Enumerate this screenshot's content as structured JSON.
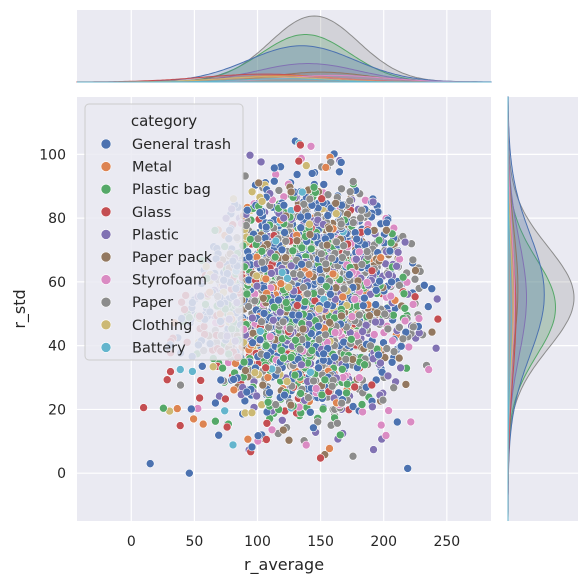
{
  "chart_data": {
    "type": "scatter",
    "title": "",
    "xlabel": "r_average",
    "ylabel": "r_std",
    "xlim": [
      -43,
      285
    ],
    "ylim": [
      -15,
      118
    ],
    "x_ticks": [
      "0",
      "50",
      "100",
      "150",
      "200",
      "250"
    ],
    "y_ticks": [
      "0",
      "20",
      "40",
      "60",
      "80",
      "100"
    ],
    "x_tick_values": [
      0,
      50,
      100,
      150,
      200,
      250
    ],
    "y_tick_values": [
      0,
      20,
      40,
      60,
      80,
      100
    ],
    "grid": true,
    "legend": {
      "title": "category",
      "position": "top-left",
      "entries": [
        "General trash",
        "Metal",
        "Plastic bag",
        "Glass",
        "Plastic",
        "Paper pack",
        "Styrofoam",
        "Paper",
        "Clothing",
        "Battery"
      ]
    },
    "series": [
      {
        "name": "General trash",
        "color": "#4c72b0",
        "x_mean": 135,
        "x_sd": 42,
        "y_mean": 56,
        "y_sd": 19,
        "kde_scale": 0.55
      },
      {
        "name": "Metal",
        "color": "#dd8452",
        "x_mean": 120,
        "x_sd": 40,
        "y_mean": 55,
        "y_sd": 18,
        "kde_scale": 0.1
      },
      {
        "name": "Plastic bag",
        "color": "#55a868",
        "x_mean": 138,
        "x_sd": 35,
        "y_mean": 52,
        "y_sd": 15,
        "kde_scale": 0.72
      },
      {
        "name": "Glass",
        "color": "#c44e52",
        "x_mean": 105,
        "x_sd": 48,
        "y_mean": 50,
        "y_sd": 20,
        "kde_scale": 0.12
      },
      {
        "name": "Plastic",
        "color": "#8172b3",
        "x_mean": 140,
        "x_sd": 40,
        "y_mean": 55,
        "y_sd": 18,
        "kde_scale": 0.28
      },
      {
        "name": "Paper pack",
        "color": "#937860",
        "x_mean": 150,
        "x_sd": 38,
        "y_mean": 58,
        "y_sd": 18,
        "kde_scale": 0.15
      },
      {
        "name": "Styrofoam",
        "color": "#da8bc3",
        "x_mean": 160,
        "x_sd": 40,
        "y_mean": 55,
        "y_sd": 20,
        "kde_scale": 0.1
      },
      {
        "name": "Paper",
        "color": "#8c8c8c",
        "x_mean": 145,
        "x_sd": 35,
        "y_mean": 55,
        "y_sd": 16,
        "kde_scale": 1.0
      },
      {
        "name": "Clothing",
        "color": "#ccb974",
        "x_mean": 110,
        "x_sd": 40,
        "y_mean": 52,
        "y_sd": 18,
        "kde_scale": 0.08
      },
      {
        "name": "Battery",
        "color": "#64b5cd",
        "x_mean": 120,
        "x_sd": 35,
        "y_mean": 50,
        "y_sd": 18,
        "kde_scale": 0.05
      }
    ],
    "outliers": [
      {
        "x": 46,
        "y": 0
      },
      {
        "x": 219,
        "y": 1.5
      },
      {
        "x": 15,
        "y": 3
      }
    ]
  }
}
